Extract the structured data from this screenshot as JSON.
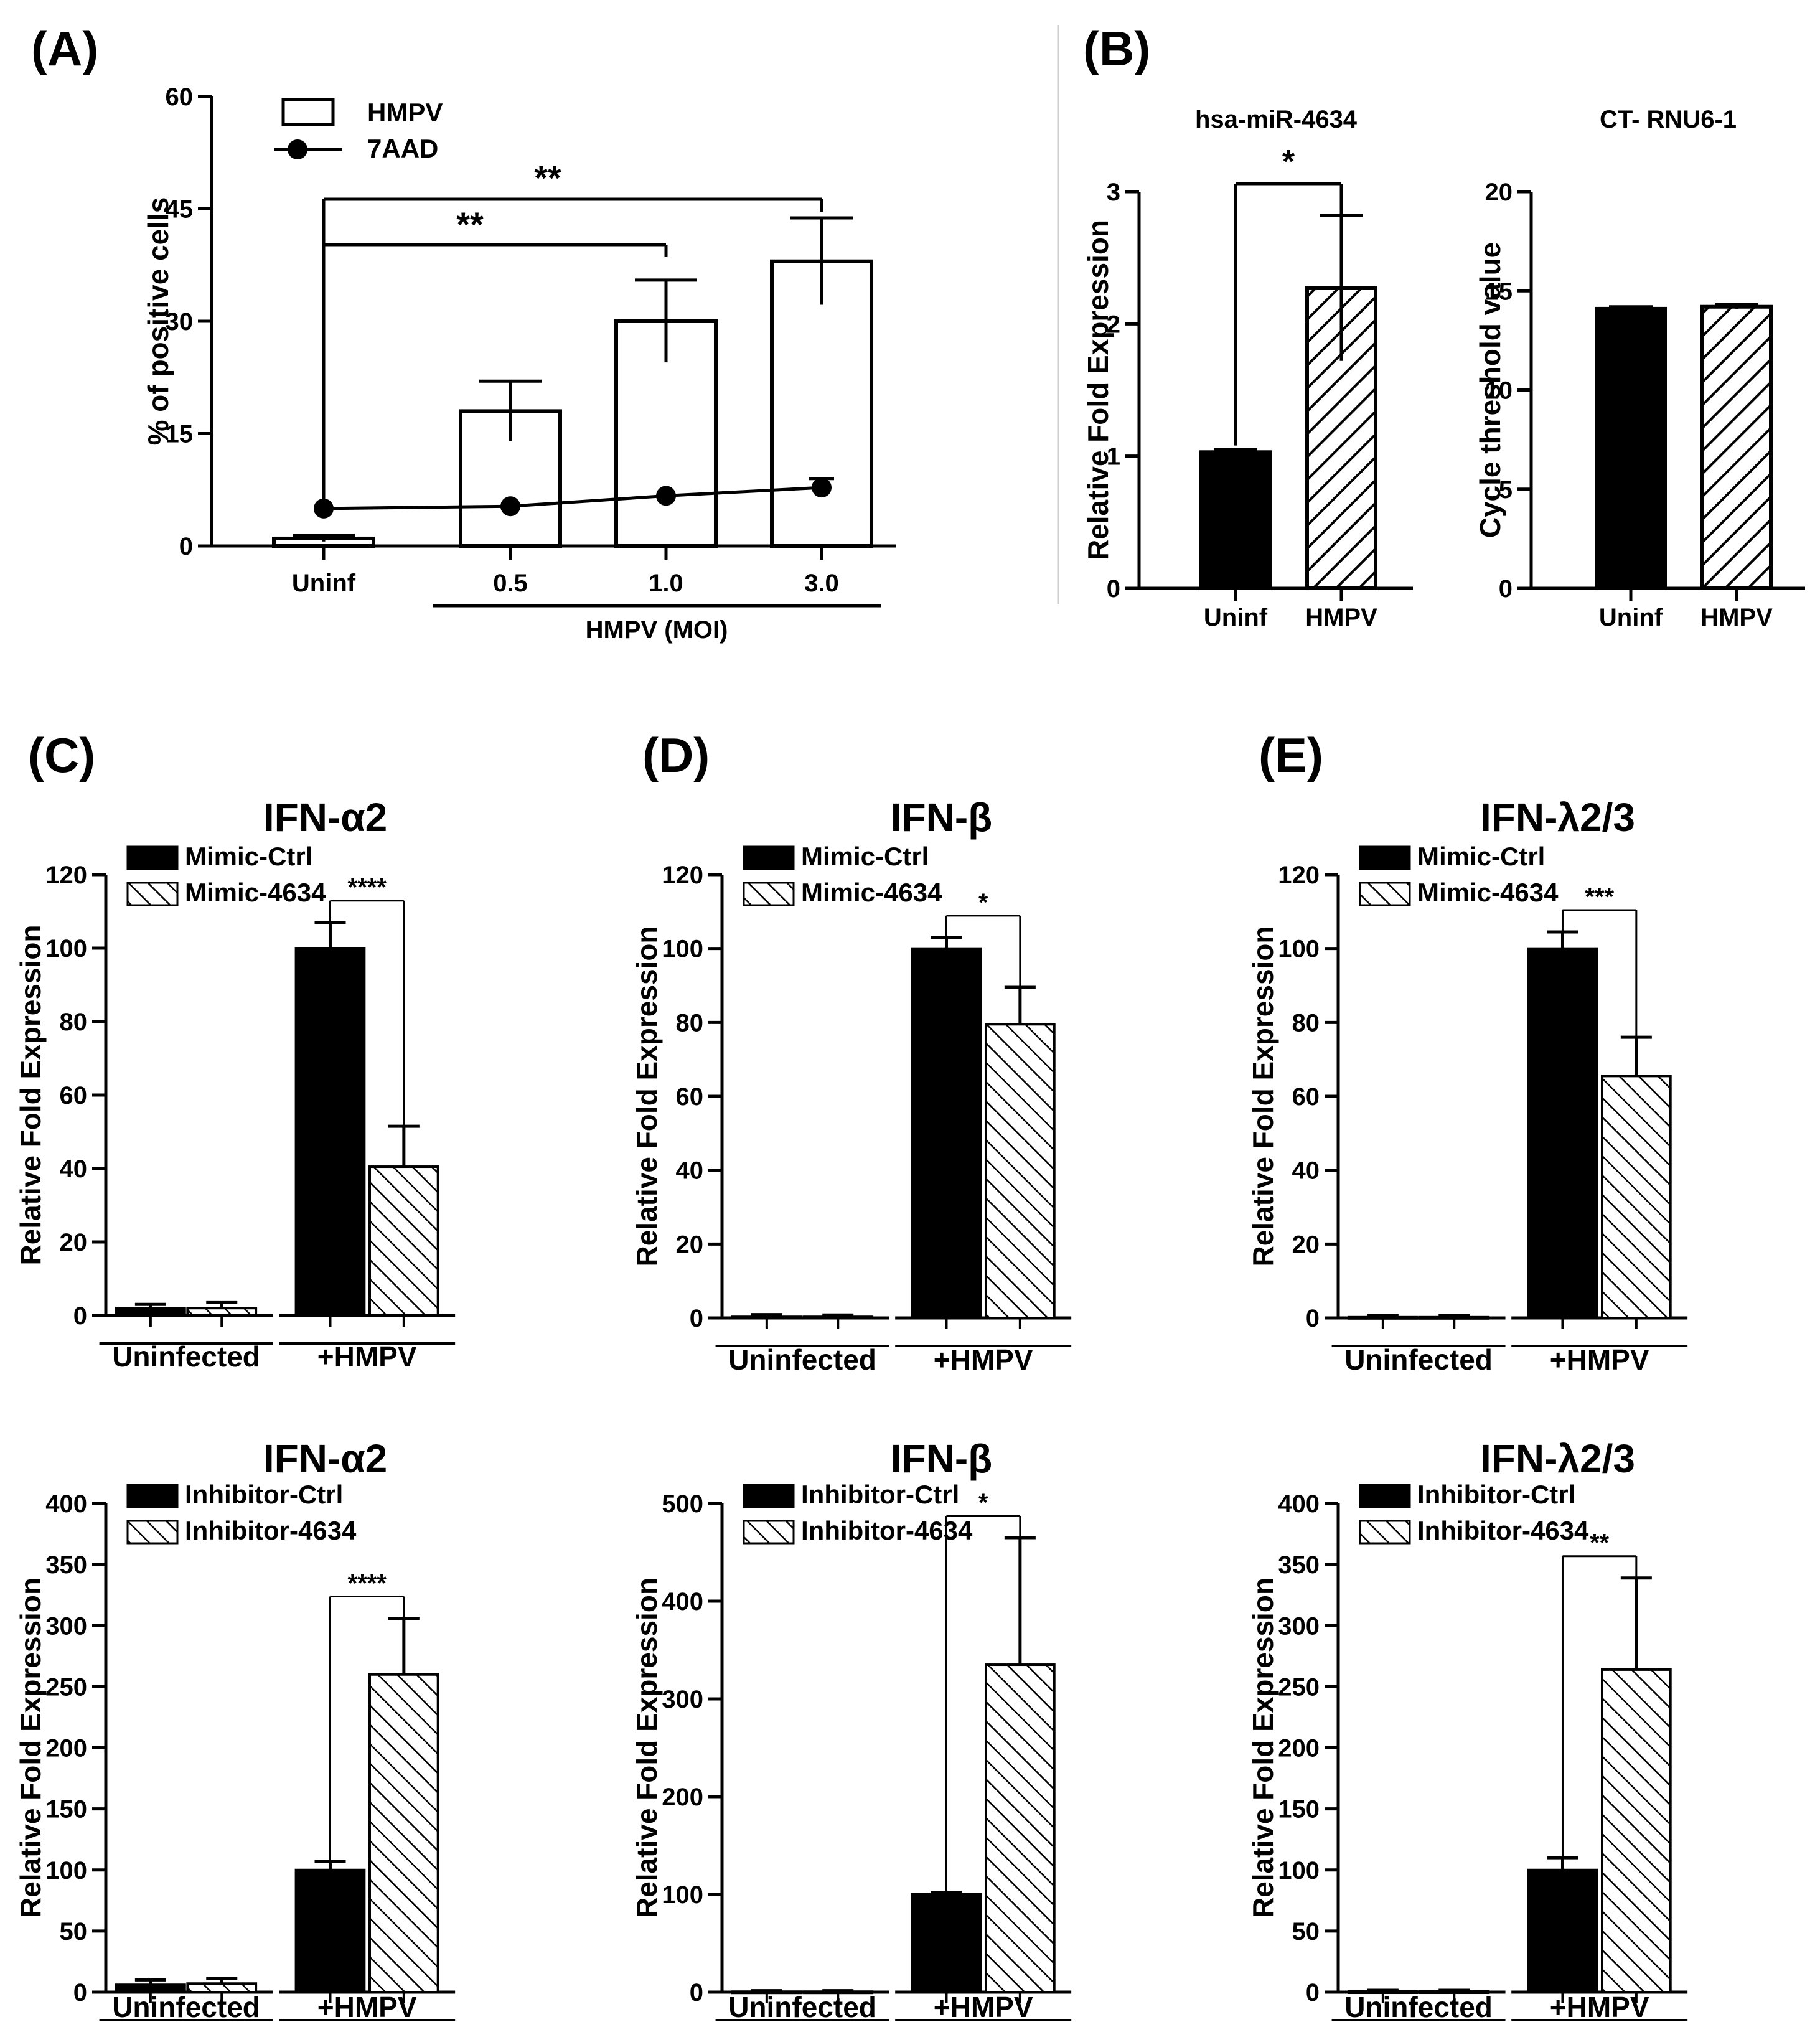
{
  "chart_data": [
    {
      "id": "A",
      "panel_label": "(A)",
      "type": "bar+line",
      "title": "",
      "ylabel": "% of positive cells",
      "group_label": "HMPV (MOI)",
      "ylim": [
        0,
        60
      ],
      "yticks": [
        "0",
        "15",
        "30",
        "45",
        "60"
      ],
      "categories": [
        "Uninf",
        "0.5",
        "1.0",
        "3.0"
      ],
      "series": [
        {
          "name": "HMPV",
          "style": "open",
          "values": [
            1,
            18,
            30,
            38
          ],
          "errors": [
            0.4,
            4,
            5.5,
            5.8
          ]
        },
        {
          "name": "7AAD",
          "style": "line-dot",
          "values": [
            5,
            5.3,
            6.7,
            7.8
          ],
          "errors": [
            0,
            0,
            0,
            1.2
          ]
        }
      ],
      "comparisons": [
        {
          "from": 0,
          "to": 2,
          "label": "**"
        },
        {
          "from": 0,
          "to": 3,
          "label": "**"
        }
      ]
    },
    {
      "id": "B1",
      "panel_label": "(B)",
      "type": "bar",
      "title": "hsa-miR-4634",
      "ylabel": "Relative Fold Expression",
      "ylim": [
        0,
        3
      ],
      "yticks": [
        "0",
        "1",
        "2",
        "3"
      ],
      "categories": [
        "Uninf",
        "HMPV"
      ],
      "values": [
        1.03,
        2.27
      ],
      "errors": [
        0.02,
        0.55
      ],
      "styles": [
        "solid",
        "hatch"
      ],
      "comparisons": [
        {
          "from": 0,
          "to": 1,
          "label": "*"
        }
      ]
    },
    {
      "id": "B2",
      "type": "bar",
      "title": "CT- RNU6-1",
      "ylabel": "Cycle threshold value",
      "ylim": [
        0,
        20
      ],
      "yticks": [
        "0",
        "5",
        "10",
        "15",
        "20"
      ],
      "categories": [
        "Uninf",
        "HMPV"
      ],
      "values": [
        14.1,
        14.2
      ],
      "errors": [
        0.1,
        0.1
      ],
      "styles": [
        "solid",
        "hatch"
      ]
    },
    {
      "id": "C1",
      "panel_label": "(C)",
      "type": "bar",
      "title": "IFN-α2",
      "ylabel": "Relative Fold Expression",
      "ylim": [
        0,
        120
      ],
      "yticks": [
        "0",
        "20",
        "40",
        "60",
        "80",
        "100",
        "120"
      ],
      "groups": [
        "Uninfected",
        "+HMPV"
      ],
      "series": [
        {
          "name": "Mimic-Ctrl",
          "style": "solid",
          "values": [
            2,
            100
          ],
          "errors": [
            1,
            7
          ]
        },
        {
          "name": "Mimic-4634",
          "style": "hatch",
          "values": [
            2,
            40.5
          ],
          "errors": [
            1.5,
            11
          ]
        }
      ],
      "comparisons": [
        {
          "group": 1,
          "label": "****"
        }
      ]
    },
    {
      "id": "D1",
      "panel_label": "(D)",
      "type": "bar",
      "title": "IFN-β",
      "ylabel": "Relative Fold Expression",
      "ylim": [
        0,
        120
      ],
      "yticks": [
        "0",
        "20",
        "40",
        "60",
        "80",
        "100",
        "120"
      ],
      "groups": [
        "Uninfected",
        "+HMPV"
      ],
      "series": [
        {
          "name": "Mimic-Ctrl",
          "style": "solid",
          "values": [
            0.3,
            100
          ],
          "errors": [
            0.6,
            3
          ]
        },
        {
          "name": "Mimic-4634",
          "style": "hatch",
          "values": [
            0.3,
            79.5
          ],
          "errors": [
            0.5,
            10
          ]
        }
      ],
      "comparisons": [
        {
          "group": 1,
          "label": "*"
        }
      ]
    },
    {
      "id": "E1",
      "panel_label": "(E)",
      "type": "bar",
      "title": "IFN-λ2/3",
      "ylabel": "Relative Fold Expression",
      "ylim": [
        0,
        120
      ],
      "yticks": [
        "0",
        "20",
        "40",
        "60",
        "80",
        "100",
        "120"
      ],
      "groups": [
        "Uninfected",
        "+HMPV"
      ],
      "series": [
        {
          "name": "Mimic-Ctrl",
          "style": "solid",
          "values": [
            0.2,
            100
          ],
          "errors": [
            0.4,
            4.5
          ]
        },
        {
          "name": "Mimic-4634",
          "style": "hatch",
          "values": [
            0.2,
            65.5
          ],
          "errors": [
            0.4,
            10.5
          ]
        }
      ],
      "comparisons": [
        {
          "group": 1,
          "label": "***"
        }
      ]
    },
    {
      "id": "C2",
      "type": "bar",
      "title": "IFN-α2",
      "ylabel": "Relative Fold Expression",
      "ylim": [
        0,
        400
      ],
      "yticks": [
        "0",
        "50",
        "100",
        "150",
        "200",
        "250",
        "300",
        "350",
        "400"
      ],
      "groups": [
        "Uninfected",
        "+HMPV"
      ],
      "series": [
        {
          "name": "Inhibitor-Ctrl",
          "style": "solid",
          "values": [
            6,
            100
          ],
          "errors": [
            4,
            7
          ]
        },
        {
          "name": "Inhibitor-4634",
          "style": "hatch",
          "values": [
            7,
            260
          ],
          "errors": [
            4,
            46
          ]
        }
      ],
      "comparisons": [
        {
          "group": 1,
          "label": "****"
        }
      ]
    },
    {
      "id": "D2",
      "type": "bar",
      "title": "IFN-β",
      "ylabel": "Relative Fold Expression",
      "ylim": [
        0,
        500
      ],
      "yticks": [
        "0",
        "100",
        "200",
        "300",
        "400",
        "500"
      ],
      "groups": [
        "Uninfected",
        "+HMPV"
      ],
      "series": [
        {
          "name": "Inhibitor-Ctrl",
          "style": "solid",
          "values": [
            0.5,
            100
          ],
          "errors": [
            1,
            2
          ]
        },
        {
          "name": "Inhibitor-4634",
          "style": "hatch",
          "values": [
            0.5,
            335
          ],
          "errors": [
            1,
            130
          ]
        }
      ],
      "comparisons": [
        {
          "group": 1,
          "label": "*"
        }
      ]
    },
    {
      "id": "E2",
      "type": "bar",
      "title": "IFN-λ2/3",
      "ylabel": "Relative Fold Expression",
      "ylim": [
        0,
        400
      ],
      "yticks": [
        "0",
        "50",
        "100",
        "150",
        "200",
        "250",
        "300",
        "350",
        "400"
      ],
      "groups": [
        "Uninfected",
        "+HMPV"
      ],
      "series": [
        {
          "name": "Inhibitor-Ctrl",
          "style": "solid",
          "values": [
            0.5,
            100
          ],
          "errors": [
            1,
            10
          ]
        },
        {
          "name": "Inhibitor-4634",
          "style": "hatch",
          "values": [
            0.5,
            264
          ],
          "errors": [
            1,
            75
          ]
        }
      ],
      "comparisons": [
        {
          "group": 1,
          "label": "**"
        }
      ]
    }
  ]
}
